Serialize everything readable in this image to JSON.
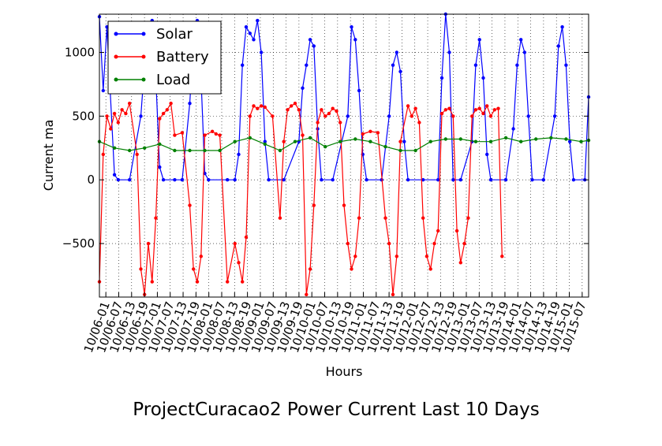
{
  "chart_data": {
    "type": "line",
    "title": "ProjectCuracao2 Power Current Last 10 Days",
    "xlabel": "Hours",
    "ylabel": "Current ma",
    "ylim": [
      -920,
      1300
    ],
    "yticks": [
      -500,
      0,
      500,
      1000
    ],
    "ytick_labels": [
      "−500",
      "0",
      "500",
      "1000"
    ],
    "xticks": [
      "10/06-01",
      "10/06-07",
      "10/06-13",
      "10/06-19",
      "10/07-01",
      "10/07-07",
      "10/07-13",
      "10/07-19",
      "10/08-01",
      "10/08-07",
      "10/08-13",
      "10/08-19",
      "10/09-01",
      "10/09-07",
      "10/09-13",
      "10/09-19",
      "10/10-01",
      "10/10-07",
      "10/10-13",
      "10/10-19",
      "10/11-01",
      "10/11-07",
      "10/11-13",
      "10/11-19",
      "10/12-01",
      "10/12-07",
      "10/12-13",
      "10/12-19",
      "10/13-01",
      "10/13-07",
      "10/13-13",
      "10/13-19",
      "10/14-01",
      "10/14-07",
      "10/14-13",
      "10/14-19",
      "10/15-01",
      "10/15-07"
    ],
    "grid": true,
    "legend": "top-left",
    "series": [
      {
        "name": "Solar",
        "color": "#0000ff",
        "points": [
          [
            0,
            1280
          ],
          [
            1,
            700
          ],
          [
            2,
            1200
          ],
          [
            4,
            40
          ],
          [
            5,
            0
          ],
          [
            8,
            0
          ],
          [
            11,
            500
          ],
          [
            12,
            900
          ],
          [
            13,
            1200
          ],
          [
            14,
            1250
          ],
          [
            15,
            800
          ],
          [
            16,
            100
          ],
          [
            17,
            0
          ],
          [
            20,
            0
          ],
          [
            22,
            0
          ],
          [
            24,
            600
          ],
          [
            25,
            1100
          ],
          [
            26,
            1250
          ],
          [
            27,
            800
          ],
          [
            28,
            50
          ],
          [
            29,
            0
          ],
          [
            34,
            0
          ],
          [
            36,
            0
          ],
          [
            37,
            200
          ],
          [
            38,
            900
          ],
          [
            39,
            1200
          ],
          [
            40,
            1150
          ],
          [
            41,
            1100
          ],
          [
            42,
            1250
          ],
          [
            43,
            1000
          ],
          [
            44,
            300
          ],
          [
            45,
            0
          ],
          [
            49,
            0
          ],
          [
            53,
            300
          ],
          [
            54,
            720
          ],
          [
            55,
            900
          ],
          [
            56,
            1100
          ],
          [
            57,
            1050
          ],
          [
            58,
            400
          ],
          [
            59,
            0
          ],
          [
            62,
            0
          ],
          [
            66,
            500
          ],
          [
            67,
            1200
          ],
          [
            68,
            1100
          ],
          [
            69,
            700
          ],
          [
            70,
            200
          ],
          [
            71,
            0
          ],
          [
            75,
            0
          ],
          [
            77,
            500
          ],
          [
            78,
            900
          ],
          [
            79,
            1000
          ],
          [
            80,
            850
          ],
          [
            81,
            300
          ],
          [
            82,
            0
          ],
          [
            86,
            0
          ],
          [
            90,
            0
          ],
          [
            91,
            800
          ],
          [
            92,
            1300
          ],
          [
            93,
            1000
          ],
          [
            94,
            0
          ],
          [
            96,
            0
          ],
          [
            99,
            300
          ],
          [
            100,
            900
          ],
          [
            101,
            1100
          ],
          [
            102,
            800
          ],
          [
            103,
            200
          ],
          [
            104,
            0
          ],
          [
            108,
            0
          ],
          [
            110,
            400
          ],
          [
            111,
            900
          ],
          [
            112,
            1100
          ],
          [
            113,
            1000
          ],
          [
            114,
            500
          ],
          [
            115,
            0
          ],
          [
            118,
            0
          ],
          [
            121,
            500
          ],
          [
            122,
            1050
          ],
          [
            123,
            1200
          ],
          [
            124,
            900
          ],
          [
            125,
            300
          ],
          [
            126,
            0
          ],
          [
            129,
            0
          ],
          [
            130,
            650
          ]
        ]
      },
      {
        "name": "Battery",
        "color": "#ff0000",
        "points": [
          [
            0,
            -800
          ],
          [
            1,
            200
          ],
          [
            2,
            500
          ],
          [
            3,
            400
          ],
          [
            4,
            520
          ],
          [
            5,
            450
          ],
          [
            6,
            550
          ],
          [
            7,
            520
          ],
          [
            8,
            600
          ],
          [
            10,
            200
          ],
          [
            11,
            -700
          ],
          [
            12,
            -900
          ],
          [
            13,
            -500
          ],
          [
            14,
            -800
          ],
          [
            15,
            -300
          ],
          [
            16,
            480
          ],
          [
            17,
            520
          ],
          [
            18,
            550
          ],
          [
            19,
            600
          ],
          [
            20,
            350
          ],
          [
            22,
            370
          ],
          [
            24,
            -200
          ],
          [
            25,
            -700
          ],
          [
            26,
            -800
          ],
          [
            27,
            -600
          ],
          [
            28,
            350
          ],
          [
            30,
            380
          ],
          [
            31,
            360
          ],
          [
            32,
            350
          ],
          [
            34,
            -800
          ],
          [
            36,
            -500
          ],
          [
            37,
            -650
          ],
          [
            38,
            -800
          ],
          [
            39,
            -450
          ],
          [
            40,
            500
          ],
          [
            41,
            580
          ],
          [
            42,
            560
          ],
          [
            43,
            580
          ],
          [
            44,
            570
          ],
          [
            46,
            500
          ],
          [
            48,
            -300
          ],
          [
            49,
            300
          ],
          [
            50,
            550
          ],
          [
            51,
            580
          ],
          [
            52,
            600
          ],
          [
            53,
            550
          ],
          [
            54,
            350
          ],
          [
            55,
            -900
          ],
          [
            56,
            -700
          ],
          [
            57,
            -200
          ],
          [
            58,
            450
          ],
          [
            59,
            550
          ],
          [
            60,
            500
          ],
          [
            61,
            520
          ],
          [
            62,
            560
          ],
          [
            63,
            540
          ],
          [
            64,
            450
          ],
          [
            65,
            -200
          ],
          [
            66,
            -500
          ],
          [
            67,
            -700
          ],
          [
            68,
            -600
          ],
          [
            69,
            -300
          ],
          [
            70,
            360
          ],
          [
            72,
            380
          ],
          [
            74,
            370
          ],
          [
            76,
            -300
          ],
          [
            77,
            -500
          ],
          [
            78,
            -900
          ],
          [
            79,
            -600
          ],
          [
            80,
            300
          ],
          [
            82,
            580
          ],
          [
            83,
            500
          ],
          [
            84,
            560
          ],
          [
            85,
            450
          ],
          [
            86,
            -300
          ],
          [
            87,
            -600
          ],
          [
            88,
            -700
          ],
          [
            89,
            -500
          ],
          [
            90,
            -400
          ],
          [
            91,
            520
          ],
          [
            92,
            550
          ],
          [
            93,
            560
          ],
          [
            94,
            500
          ],
          [
            95,
            -400
          ],
          [
            96,
            -650
          ],
          [
            97,
            -500
          ],
          [
            98,
            -300
          ],
          [
            99,
            500
          ],
          [
            100,
            550
          ],
          [
            101,
            560
          ],
          [
            102,
            520
          ],
          [
            103,
            580
          ],
          [
            104,
            500
          ],
          [
            105,
            550
          ],
          [
            106,
            560
          ],
          [
            107,
            -600
          ]
        ]
      },
      {
        "name": "Load",
        "color": "#008000",
        "points": [
          [
            0,
            300
          ],
          [
            4,
            250
          ],
          [
            8,
            230
          ],
          [
            12,
            250
          ],
          [
            16,
            280
          ],
          [
            20,
            230
          ],
          [
            24,
            230
          ],
          [
            28,
            230
          ],
          [
            32,
            230
          ],
          [
            36,
            300
          ],
          [
            40,
            330
          ],
          [
            44,
            280
          ],
          [
            48,
            230
          ],
          [
            52,
            300
          ],
          [
            56,
            330
          ],
          [
            60,
            260
          ],
          [
            64,
            300
          ],
          [
            68,
            320
          ],
          [
            72,
            300
          ],
          [
            76,
            260
          ],
          [
            80,
            230
          ],
          [
            84,
            230
          ],
          [
            88,
            300
          ],
          [
            92,
            320
          ],
          [
            96,
            320
          ],
          [
            100,
            300
          ],
          [
            104,
            300
          ],
          [
            108,
            330
          ],
          [
            112,
            300
          ],
          [
            116,
            320
          ],
          [
            120,
            330
          ],
          [
            124,
            320
          ],
          [
            128,
            300
          ],
          [
            130,
            310
          ]
        ]
      }
    ]
  }
}
